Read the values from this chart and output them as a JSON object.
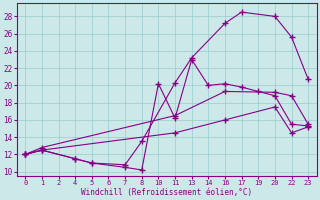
{
  "xlabel": "Windchill (Refroidissement éolien,°C)",
  "bg_color": "#cce8e8",
  "grid_color": "#99cccc",
  "line_color": "#880088",
  "ylim": [
    9.5,
    29.5
  ],
  "yticks": [
    10,
    12,
    14,
    16,
    18,
    20,
    22,
    24,
    26,
    28
  ],
  "xtick_labels": [
    "0",
    "1",
    "2",
    "4",
    "5",
    "6",
    "7",
    "8",
    "10",
    "11",
    "13",
    "14",
    "16",
    "17",
    "19",
    "20",
    "22",
    "23"
  ],
  "lines": [
    {
      "xi": [
        0,
        1,
        3,
        4,
        6,
        7,
        9,
        10,
        12,
        13,
        15,
        16,
        17
      ],
      "y": [
        12,
        12.5,
        11.5,
        11.0,
        10.8,
        13.5,
        20.3,
        23.2,
        27.2,
        28.5,
        28.0,
        25.6,
        20.7
      ]
    },
    {
      "xi": [
        0,
        1,
        3,
        4,
        6,
        7,
        8,
        9,
        10,
        11,
        12,
        13,
        14,
        15,
        16,
        17
      ],
      "y": [
        12,
        12.5,
        11.5,
        11.0,
        10.5,
        10.2,
        20.2,
        16.2,
        23.0,
        20.0,
        20.2,
        19.8,
        19.3,
        18.8,
        15.5,
        15.3
      ]
    },
    {
      "xi": [
        0,
        1,
        9,
        12,
        15,
        16,
        17
      ],
      "y": [
        12,
        12.8,
        16.5,
        19.3,
        19.2,
        18.8,
        15.5
      ]
    },
    {
      "xi": [
        0,
        1,
        9,
        12,
        15,
        16,
        17
      ],
      "y": [
        12,
        12.5,
        14.5,
        16.0,
        17.5,
        14.5,
        15.2
      ]
    }
  ]
}
